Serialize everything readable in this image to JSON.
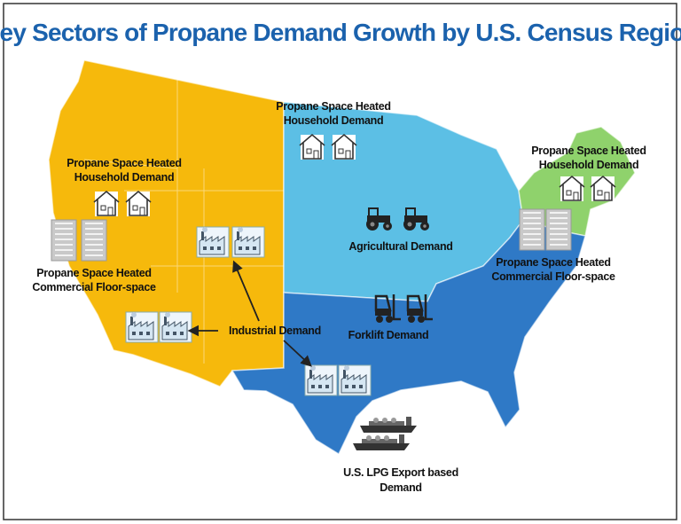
{
  "title": "Key Sectors of Propane Demand Growth by U.S. Census Region",
  "labels": {
    "west_household": [
      "Propane Space Heated",
      "Household Demand"
    ],
    "midwest_household": [
      "Propane Space Heated",
      "Household Demand"
    ],
    "northeast_household": [
      "Propane Space Heated",
      "Household Demand"
    ],
    "west_commercial": [
      "Propane Space Heated",
      "Commercial Floor-space"
    ],
    "south_commercial": [
      "Propane Space Heated",
      "Commercial Floor-space"
    ],
    "agricultural": "Agricultural Demand",
    "industrial": "Industrial Demand",
    "forklift": "Forklift Demand",
    "export": [
      "U.S. LPG Export based",
      "Demand"
    ]
  }
}
